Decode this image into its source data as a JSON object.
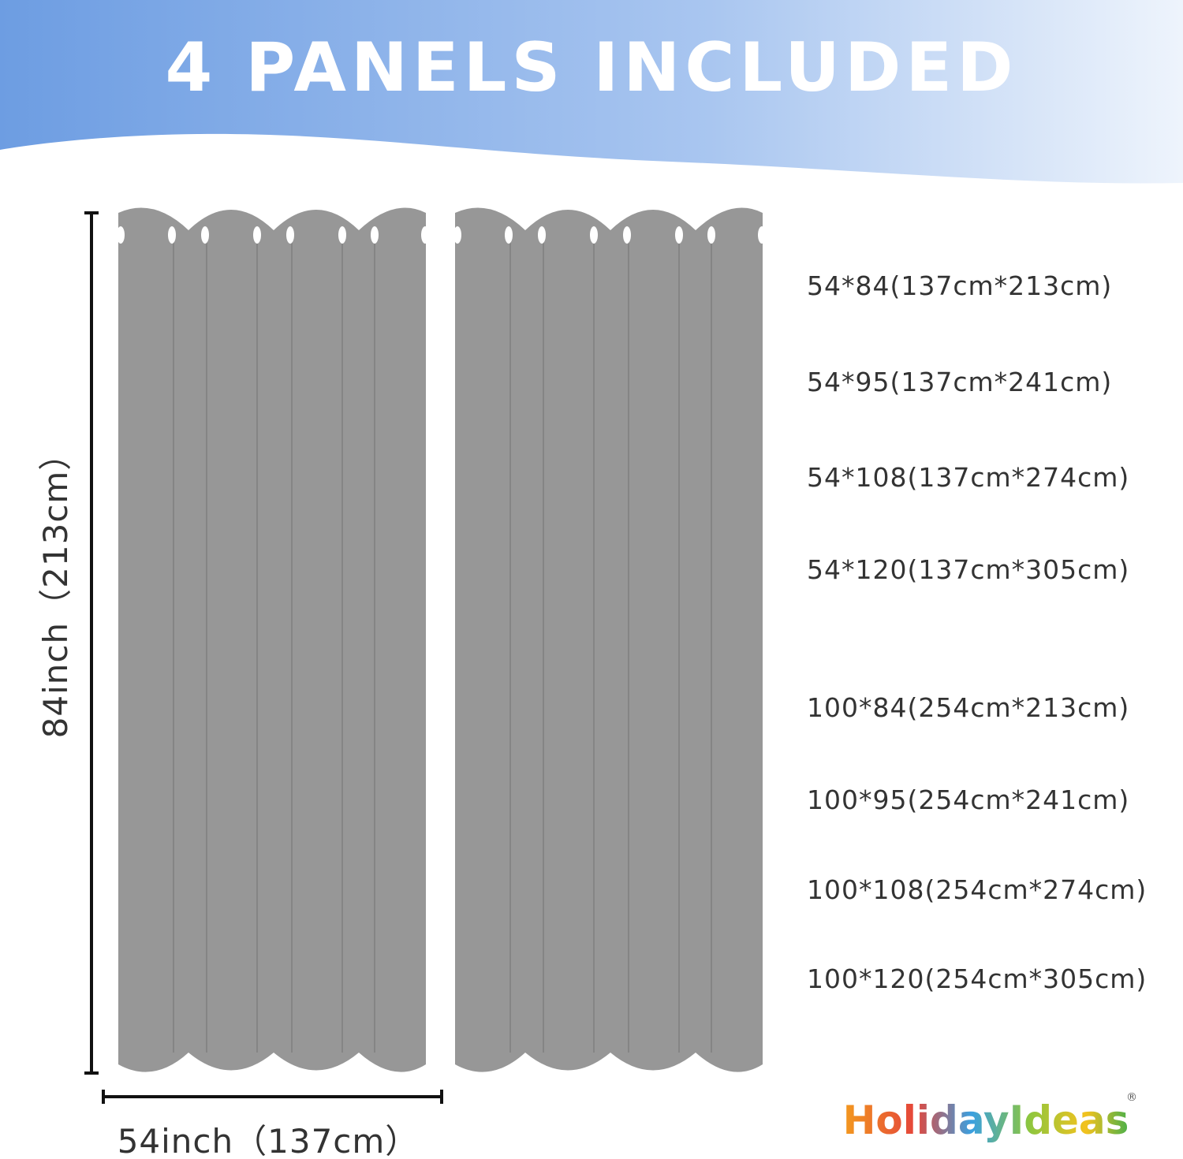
{
  "header": {
    "title": "4 PANELS INCLUDED"
  },
  "dimensions": {
    "height": "84inch（213cm）",
    "width": "54inch（137cm）"
  },
  "sizes": [
    "54*84(137cm*213cm)",
    "54*95(137cm*241cm)",
    "54*108(137cm*274cm)",
    "54*120(137cm*305cm)",
    "100*84(254cm*213cm)",
    "100*95(254cm*241cm)",
    "100*108(254cm*274cm)",
    "100*120(254cm*305cm)"
  ],
  "brand": {
    "name": "HolidayIdeas",
    "mark": "®"
  }
}
